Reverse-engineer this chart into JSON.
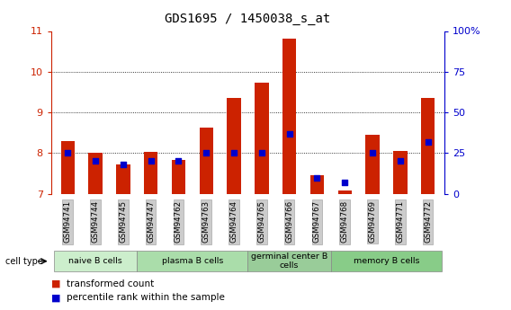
{
  "title": "GDS1695 / 1450038_s_at",
  "samples": [
    "GSM94741",
    "GSM94744",
    "GSM94745",
    "GSM94747",
    "GSM94762",
    "GSM94763",
    "GSM94764",
    "GSM94765",
    "GSM94766",
    "GSM94767",
    "GSM94768",
    "GSM94769",
    "GSM94771",
    "GSM94772"
  ],
  "transformed_count": [
    8.3,
    8.0,
    7.72,
    8.02,
    7.82,
    8.62,
    9.35,
    9.73,
    10.82,
    7.45,
    7.08,
    8.45,
    8.05,
    9.35
  ],
  "percentile_rank": [
    25,
    20,
    18,
    20,
    20,
    25,
    25,
    25,
    37,
    10,
    7,
    25,
    20,
    32
  ],
  "ylim_left": [
    7,
    11
  ],
  "ylim_right": [
    0,
    100
  ],
  "yticks_left": [
    7,
    8,
    9,
    10,
    11
  ],
  "yticks_right": [
    0,
    25,
    50,
    75,
    100
  ],
  "ytick_labels_right": [
    "0",
    "25",
    "50",
    "75",
    "100%"
  ],
  "groups": [
    {
      "label": "naive B cells",
      "start": 0,
      "end": 2,
      "color": "#cceecc"
    },
    {
      "label": "plasma B cells",
      "start": 3,
      "end": 6,
      "color": "#aaddaa"
    },
    {
      "label": "germinal center B\ncells",
      "start": 7,
      "end": 9,
      "color": "#99cc99"
    },
    {
      "label": "memory B cells",
      "start": 10,
      "end": 13,
      "color": "#88cc88"
    }
  ],
  "bar_color": "#cc2200",
  "dot_color": "#0000cc",
  "bar_width": 0.5,
  "left_axis_color": "#cc2200",
  "right_axis_color": "#0000cc",
  "bg_color": "#ffffff",
  "tick_label_bg": "#cccccc",
  "grid_yticks": [
    8,
    9,
    10
  ]
}
